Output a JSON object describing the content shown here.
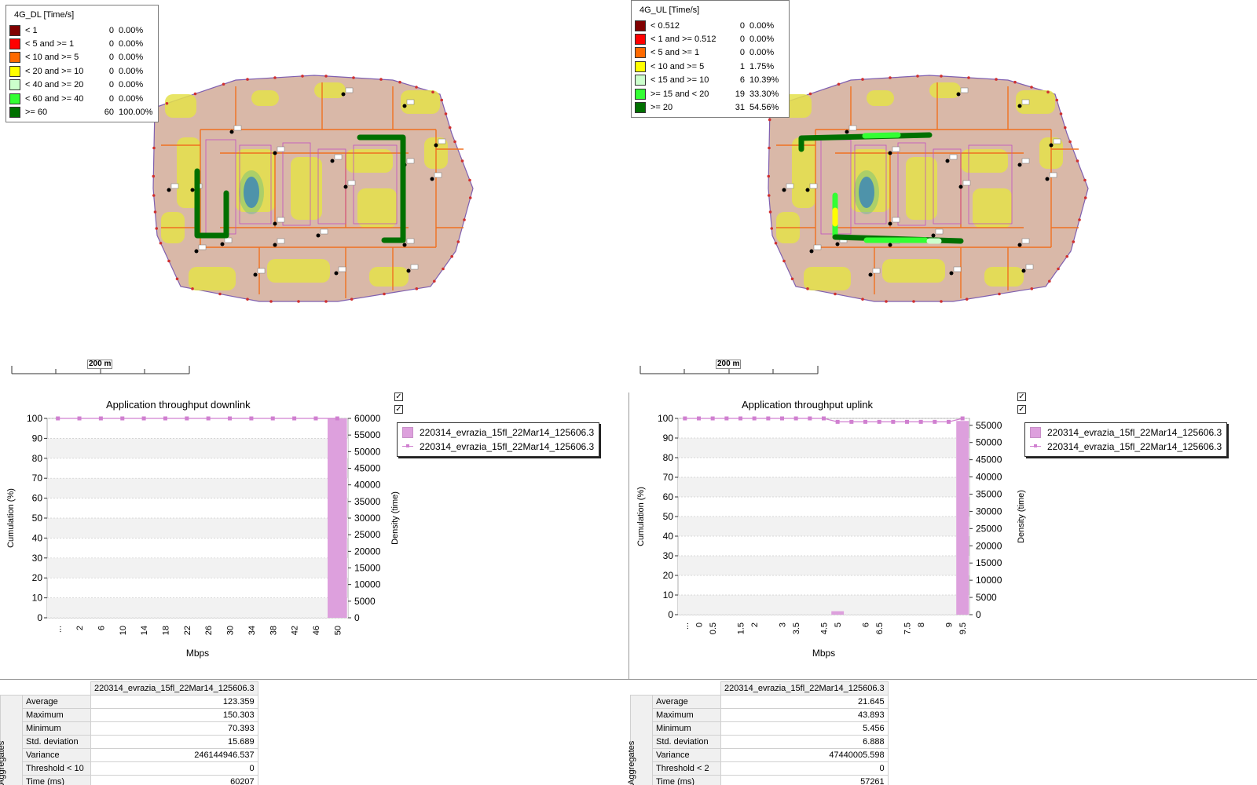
{
  "colors": {
    "accent_pink": "#dda0dd",
    "route_green": "#007000",
    "bin_colors": [
      "#800000",
      "#ff0000",
      "#ff6a00",
      "#ffff00",
      "#ccffcc",
      "#33ff33",
      "#007000"
    ]
  },
  "maps": [
    {
      "legend": {
        "title": "4G_DL [Time/s]",
        "rows": [
          {
            "label": "< 1",
            "count": "0",
            "pct": "0.00%",
            "color": "#800000"
          },
          {
            "label": "< 5 and >= 1",
            "count": "0",
            "pct": "0.00%",
            "color": "#ff0000"
          },
          {
            "label": "< 10 and >= 5",
            "count": "0",
            "pct": "0.00%",
            "color": "#ff6a00"
          },
          {
            "label": "< 20 and >= 10",
            "count": "0",
            "pct": "0.00%",
            "color": "#ffff00"
          },
          {
            "label": "< 40 and >= 20",
            "count": "0",
            "pct": "0.00%",
            "color": "#ccffcc"
          },
          {
            "label": "< 60 and >= 40",
            "count": "0",
            "pct": "0.00%",
            "color": "#33ff33"
          },
          {
            "label": ">= 60",
            "count": "60",
            "pct": "100.00%",
            "color": "#007000"
          }
        ]
      },
      "scale_label": "200 m"
    },
    {
      "legend": {
        "title": "4G_UL [Time/s]",
        "rows": [
          {
            "label": "< 0.512",
            "count": "0",
            "pct": "0.00%",
            "color": "#800000"
          },
          {
            "label": "< 1 and >= 0.512",
            "count": "0",
            "pct": "0.00%",
            "color": "#ff0000"
          },
          {
            "label": "< 5 and >= 1",
            "count": "0",
            "pct": "0.00%",
            "color": "#ff6a00"
          },
          {
            "label": "< 10 and >= 5",
            "count": "1",
            "pct": "1.75%",
            "color": "#ffff00"
          },
          {
            "label": "< 15 and >= 10",
            "count": "6",
            "pct": "10.39%",
            "color": "#ccffcc"
          },
          {
            "label": ">= 15 and < 20",
            "count": "19",
            "pct": "33.30%",
            "color": "#33ff33"
          },
          {
            "label": ">= 20",
            "count": "31",
            "pct": "54.56%",
            "color": "#007000"
          }
        ]
      },
      "scale_label": "200 m"
    }
  ],
  "chart_data": [
    {
      "type": "bar",
      "title": "Application throughput downlink",
      "xlabel": "Mbps",
      "ylabel_left": "Cumulation (%)",
      "ylabel_right": "Density (time)",
      "y_left_ticks": [
        0,
        10,
        20,
        30,
        40,
        50,
        60,
        70,
        80,
        90,
        100
      ],
      "y_right_ticks": [
        0,
        5000,
        10000,
        15000,
        20000,
        25000,
        30000,
        35000,
        40000,
        45000,
        50000,
        55000,
        60000
      ],
      "ylim_left": [
        0,
        100
      ],
      "ylim_right": [
        0,
        60000
      ],
      "categories": [
        "...",
        "2",
        "6",
        "10",
        "14",
        "18",
        "22",
        "26",
        "30",
        "34",
        "38",
        "42",
        "46",
        "50"
      ],
      "series": [
        {
          "name": "220314_evrazia_15fl_22Mar14_125606.3",
          "kind": "density-bar",
          "values": [
            0,
            0,
            0,
            0,
            0,
            0,
            0,
            0,
            0,
            0,
            0,
            0,
            0,
            60207
          ]
        },
        {
          "name": "220314_evrazia_15fl_22Mar14_125606.3",
          "kind": "cumulation-line",
          "values": [
            0,
            0,
            0,
            0,
            0,
            0,
            0,
            0,
            0,
            0,
            0,
            0,
            0,
            100
          ]
        }
      ],
      "grid": "horizontal",
      "legend_placement": "right"
    },
    {
      "type": "bar",
      "title": "Application throughput uplink",
      "xlabel": "Mbps",
      "ylabel_left": "Cumulation (%)",
      "ylabel_right": "Density (time)",
      "y_left_ticks": [
        0,
        10,
        20,
        30,
        40,
        50,
        60,
        70,
        80,
        90,
        100
      ],
      "y_right_ticks": [
        0,
        5000,
        10000,
        15000,
        20000,
        25000,
        30000,
        35000,
        40000,
        45000,
        50000,
        55000
      ],
      "ylim_left": [
        0,
        100
      ],
      "ylim_right": [
        0,
        57000
      ],
      "categories": [
        "...",
        "0",
        "0.5",
        "1",
        "1.5",
        "2",
        "2.5",
        "3",
        "3.5",
        "4",
        "4.5",
        "5",
        "5.5",
        "6",
        "6.5",
        "7",
        "7.5",
        "8",
        "8.5",
        "9",
        "9.5"
      ],
      "tick_labels_shown": [
        "...",
        "0",
        "0.5",
        "1.5",
        "2",
        "3",
        "3.5",
        "4.5",
        "5",
        "6",
        "6.5",
        "7.5",
        "8",
        "9",
        "9.5"
      ],
      "series": [
        {
          "name": "220314_evrazia_15fl_22Mar14_125606.3",
          "kind": "density-bar",
          "values": [
            0,
            0,
            0,
            0,
            0,
            0,
            0,
            0,
            0,
            0,
            0,
            1000,
            0,
            0,
            0,
            0,
            0,
            0,
            0,
            0,
            56261
          ]
        },
        {
          "name": "220314_evrazia_15fl_22Mar14_125606.3",
          "kind": "cumulation-line",
          "values": [
            0,
            0,
            0,
            0,
            0,
            0,
            0,
            0,
            0,
            0,
            0,
            1.75,
            1.75,
            1.75,
            1.75,
            1.75,
            1.75,
            1.75,
            1.75,
            1.75,
            100
          ]
        }
      ],
      "grid": "horizontal",
      "legend_placement": "right"
    }
  ],
  "charts": [
    {
      "title": "Application throughput downlink",
      "xlabel": "Mbps",
      "ylabel_left": "Cumulation (%)",
      "ylabel_right": "Density (time)",
      "legend": [
        "220314_evrazia_15fl_22Mar14_125606.3",
        "220314_evrazia_15fl_22Mar14_125606.3"
      ]
    },
    {
      "title": "Application throughput uplink",
      "xlabel": "Mbps",
      "ylabel_left": "Cumulation (%)",
      "ylabel_right": "Density (time)",
      "legend": [
        "220314_evrazia_15fl_22Mar14_125606.3",
        "220314_evrazia_15fl_22Mar14_125606.3"
      ]
    }
  ],
  "aggregates": [
    {
      "side_label": "Aggregates",
      "column": "220314_evrazia_15fl_22Mar14_125606.3",
      "rows": [
        {
          "name": "Average",
          "value": "123.359"
        },
        {
          "name": "Maximum",
          "value": "150.303"
        },
        {
          "name": "Minimum",
          "value": "70.393"
        },
        {
          "name": "Std. deviation",
          "value": "15.689"
        },
        {
          "name": "Variance",
          "value": "246144946.537"
        },
        {
          "name": "Threshold < 10",
          "value": "0"
        },
        {
          "name": "Time (ms)",
          "value": "60207"
        }
      ]
    },
    {
      "side_label": "Aggregates",
      "column": "220314_evrazia_15fl_22Mar14_125606.3",
      "rows": [
        {
          "name": "Average",
          "value": "21.645"
        },
        {
          "name": "Maximum",
          "value": "43.893"
        },
        {
          "name": "Minimum",
          "value": "5.456"
        },
        {
          "name": "Std. deviation",
          "value": "6.888"
        },
        {
          "name": "Variance",
          "value": "47440005.598"
        },
        {
          "name": "Threshold < 2",
          "value": "0"
        },
        {
          "name": "Time (ms)",
          "value": "57261"
        }
      ]
    }
  ]
}
